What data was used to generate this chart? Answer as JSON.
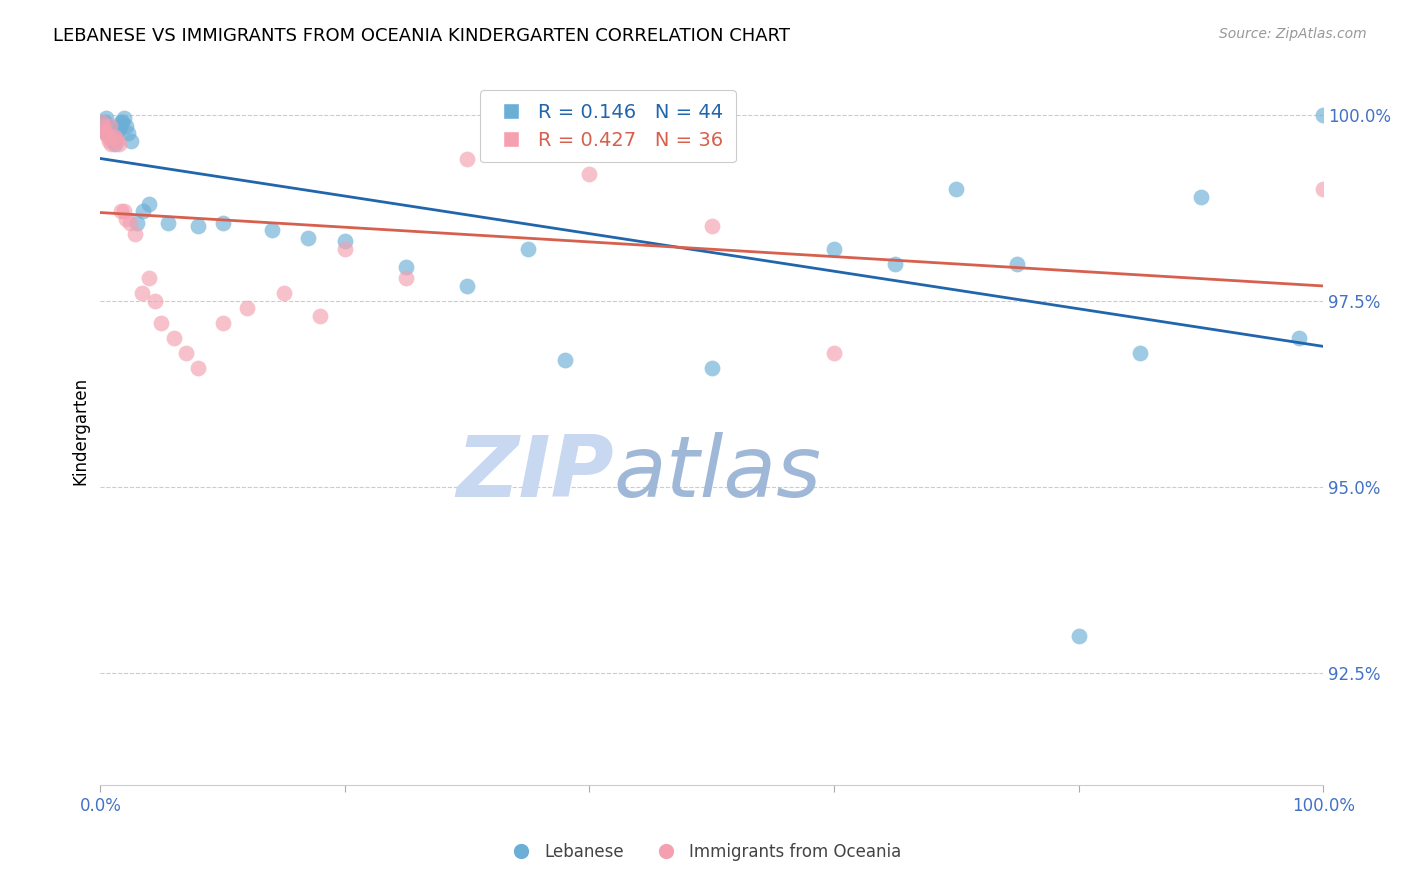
{
  "title": "LEBANESE VS IMMIGRANTS FROM OCEANIA KINDERGARTEN CORRELATION CHART",
  "source": "Source: ZipAtlas.com",
  "ylabel": "Kindergarten",
  "legend_label_blue": "Lebanese",
  "legend_label_pink": "Immigrants from Oceania",
  "R_blue": 0.146,
  "N_blue": 44,
  "R_pink": 0.427,
  "N_pink": 36,
  "color_blue": "#6baed6",
  "color_pink": "#f4a0b0",
  "color_line_blue": "#2166ac",
  "color_line_pink": "#d6604d",
  "color_axis": "#4472c4",
  "color_grid": "#cccccc",
  "xlim": [
    0.0,
    1.0
  ],
  "ylim": [
    0.91,
    1.005
  ],
  "yticks": [
    0.925,
    0.95,
    0.975,
    1.0
  ],
  "ytick_labels": [
    "92.5%",
    "95.0%",
    "97.5%",
    "100.0%"
  ],
  "blue_x": [
    0.001,
    0.002,
    0.003,
    0.004,
    0.005,
    0.006,
    0.007,
    0.008,
    0.009,
    0.01,
    0.011,
    0.012,
    0.013,
    0.015,
    0.016,
    0.017,
    0.018,
    0.019,
    0.021,
    0.023,
    0.025,
    0.03,
    0.035,
    0.04,
    0.055,
    0.08,
    0.1,
    0.14,
    0.17,
    0.2,
    0.25,
    0.3,
    0.35,
    0.38,
    0.5,
    0.6,
    0.65,
    0.7,
    0.75,
    0.8,
    0.85,
    0.9,
    0.98,
    1.0
  ],
  "blue_y": [
    0.999,
    0.9985,
    0.998,
    0.999,
    0.9995,
    0.9985,
    0.9975,
    0.998,
    0.9975,
    0.9965,
    0.9965,
    0.996,
    0.997,
    0.998,
    0.9985,
    0.999,
    0.999,
    0.9995,
    0.9985,
    0.9975,
    0.9965,
    0.9855,
    0.987,
    0.988,
    0.9855,
    0.985,
    0.9855,
    0.9845,
    0.9835,
    0.983,
    0.9795,
    0.977,
    0.982,
    0.967,
    0.966,
    0.982,
    0.98,
    0.99,
    0.98,
    0.93,
    0.968,
    0.989,
    0.97,
    1.0
  ],
  "pink_x": [
    0.001,
    0.002,
    0.003,
    0.004,
    0.005,
    0.006,
    0.007,
    0.008,
    0.009,
    0.01,
    0.012,
    0.014,
    0.015,
    0.017,
    0.019,
    0.021,
    0.024,
    0.028,
    0.034,
    0.04,
    0.045,
    0.05,
    0.06,
    0.07,
    0.08,
    0.1,
    0.12,
    0.15,
    0.18,
    0.2,
    0.25,
    0.3,
    0.4,
    0.5,
    0.6,
    1.0
  ],
  "pink_y": [
    0.999,
    0.9985,
    0.998,
    0.9975,
    0.9975,
    0.997,
    0.9965,
    0.9985,
    0.996,
    0.997,
    0.997,
    0.9965,
    0.996,
    0.987,
    0.987,
    0.986,
    0.9855,
    0.984,
    0.976,
    0.978,
    0.975,
    0.972,
    0.97,
    0.968,
    0.966,
    0.972,
    0.974,
    0.976,
    0.973,
    0.982,
    0.978,
    0.994,
    0.992,
    0.985,
    0.968,
    0.99
  ],
  "watermark_zip": "ZIP",
  "watermark_atlas": "atlas",
  "watermark_color_zip": "#c8d8f0",
  "watermark_color_atlas": "#a0b8d8",
  "figsize": [
    14.06,
    8.92
  ],
  "dpi": 100
}
